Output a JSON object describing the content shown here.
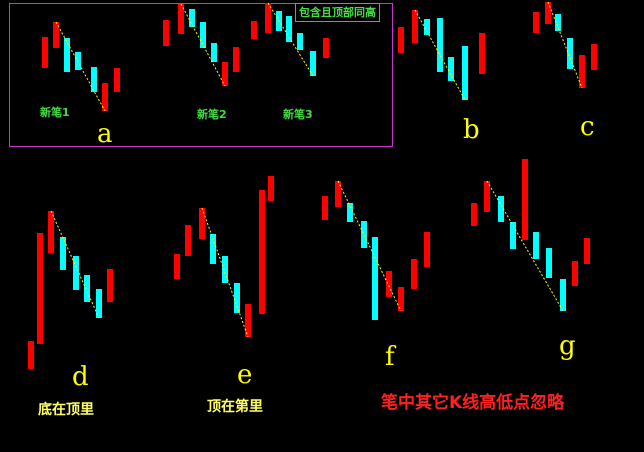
{
  "inset": {
    "badge": "包含且顶部同高",
    "labels": [
      "新笔1",
      "新笔2",
      "新笔3"
    ]
  },
  "letters": [
    "a",
    "b",
    "c",
    "d",
    "e",
    "f",
    "g"
  ],
  "captions": {
    "d": "底在顶里",
    "e": "顶在第里"
  },
  "note": "笔中其它K线高低点忽略",
  "colors": {
    "up": "#ff0000",
    "down": "#00ffff",
    "stroke": "#ffff00",
    "frame": "#c838c8",
    "label": "#40e040"
  }
}
